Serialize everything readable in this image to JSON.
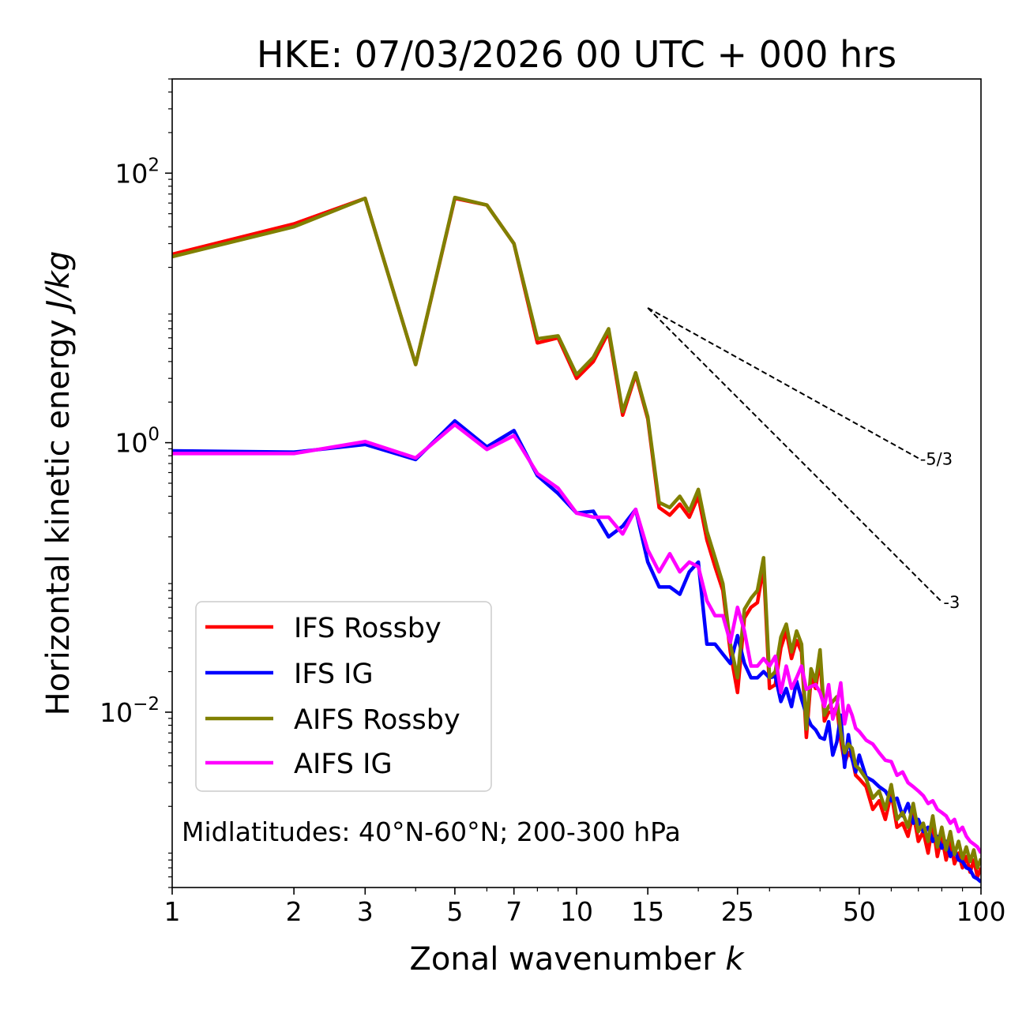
{
  "chart_data": {
    "type": "line",
    "title": "HKE: 07/03/2026 00 UTC + 000 hrs",
    "xlabel": "Zonal wavenumber",
    "xlabel_var": "k",
    "ylabel": "Horizontal kinetic energy",
    "ylabel_units": "J/kg",
    "xscale": "log",
    "yscale": "log",
    "xlim": [
      1,
      100
    ],
    "ylim": [
      0.0005,
      500
    ],
    "xticks": [
      1,
      2,
      3,
      5,
      7,
      10,
      15,
      25,
      50,
      100
    ],
    "xtick_labels": [
      "1",
      "2",
      "3",
      "5",
      "7",
      "10",
      "15",
      "25",
      "50",
      "100"
    ],
    "yticks": [
      {
        "value": 0.01,
        "base": "10",
        "exp": "−2"
      },
      {
        "value": 1,
        "base": "10",
        "exp": "0"
      },
      {
        "value": 100,
        "base": "10",
        "exp": "2"
      }
    ],
    "annotation": "Midlatitudes: 40°N-60°N; 200-300 hPa",
    "legend_position": "lower-left",
    "reference_slopes": [
      {
        "label": "-5/3",
        "slope": -1.6667,
        "x_start": 15,
        "x_end": 70,
        "y_start": 10
      },
      {
        "label": "-3",
        "slope": -3,
        "x_start": 15,
        "x_end": 80,
        "y_start": 10
      }
    ],
    "series": [
      {
        "name": "IFS Rossby",
        "color": "#ff0000",
        "x": [
          1,
          2,
          3,
          4,
          5,
          6,
          7,
          8,
          9,
          10,
          11,
          12,
          13,
          14,
          15,
          16,
          17,
          18,
          19,
          20,
          21,
          22,
          23,
          24,
          25,
          26,
          27,
          28,
          29,
          30,
          31,
          32,
          33,
          34,
          35,
          36,
          37,
          38,
          39,
          40,
          41,
          42,
          43,
          44,
          45,
          46,
          47,
          48,
          49,
          50,
          52,
          54,
          56,
          58,
          60,
          62,
          64,
          66,
          68,
          70,
          72,
          74,
          76,
          78,
          80,
          82,
          84,
          86,
          88,
          90,
          92,
          94,
          96,
          98,
          100
        ],
        "y": [
          25,
          42,
          65,
          3.8,
          65,
          58,
          30,
          5.5,
          6,
          3,
          4,
          6.6,
          1.6,
          3.2,
          1.5,
          0.33,
          0.29,
          0.35,
          0.28,
          0.4,
          0.19,
          0.12,
          0.08,
          0.028,
          0.014,
          0.05,
          0.06,
          0.065,
          0.12,
          0.015,
          0.016,
          0.03,
          0.04,
          0.025,
          0.034,
          0.028,
          0.0065,
          0.018,
          0.015,
          0.025,
          0.0086,
          0.01,
          0.01,
          0.011,
          0.0062,
          0.0042,
          0.005,
          0.0046,
          0.0034,
          0.0032,
          0.0028,
          0.0019,
          0.0022,
          0.0016,
          0.0025,
          0.0014,
          0.0015,
          0.0012,
          0.0018,
          0.0011,
          0.0013,
          0.0009,
          0.0015,
          0.00085,
          0.0012,
          0.0008,
          0.0011,
          0.00075,
          0.0009,
          0.0007,
          0.00085,
          0.00065,
          0.0008,
          0.0006,
          0.0007
        ]
      },
      {
        "name": "IFS IG",
        "color": "#0000ff",
        "x": [
          1,
          2,
          3,
          4,
          5,
          6,
          7,
          8,
          9,
          10,
          11,
          12,
          13,
          14,
          15,
          16,
          17,
          18,
          19,
          20,
          21,
          22,
          23,
          24,
          25,
          26,
          27,
          28,
          29,
          30,
          31,
          32,
          33,
          34,
          35,
          36,
          37,
          38,
          39,
          40,
          41,
          42,
          43,
          44,
          45,
          46,
          47,
          48,
          49,
          50,
          52,
          54,
          56,
          58,
          60,
          62,
          64,
          66,
          68,
          70,
          72,
          74,
          76,
          78,
          80,
          82,
          84,
          86,
          88,
          90,
          92,
          94,
          96,
          98,
          100
        ],
        "y": [
          0.87,
          0.85,
          0.97,
          0.75,
          1.45,
          0.93,
          1.23,
          0.57,
          0.42,
          0.3,
          0.31,
          0.2,
          0.24,
          0.32,
          0.13,
          0.085,
          0.085,
          0.075,
          0.11,
          0.13,
          0.032,
          0.032,
          0.027,
          0.023,
          0.037,
          0.023,
          0.018,
          0.018,
          0.02,
          0.018,
          0.0185,
          0.012,
          0.015,
          0.011,
          0.017,
          0.0125,
          0.0096,
          0.008,
          0.0074,
          0.0065,
          0.0063,
          0.0085,
          0.0048,
          0.006,
          0.0095,
          0.0039,
          0.0068,
          0.0045,
          0.0036,
          0.0048,
          0.0033,
          0.0031,
          0.0028,
          0.0026,
          0.0022,
          0.0023,
          0.0017,
          0.0021,
          0.0015,
          0.0016,
          0.0013,
          0.0014,
          0.0011,
          0.0012,
          0.00098,
          0.0011,
          0.00085,
          0.00095,
          0.0008,
          0.00078,
          0.0007,
          0.00068,
          0.0006,
          0.00058,
          0.00055
        ]
      },
      {
        "name": "AIFS Rossby",
        "color": "#808000",
        "x": [
          1,
          2,
          3,
          4,
          5,
          6,
          7,
          8,
          9,
          10,
          11,
          12,
          13,
          14,
          15,
          16,
          17,
          18,
          19,
          20,
          21,
          22,
          23,
          24,
          25,
          26,
          27,
          28,
          29,
          30,
          31,
          32,
          33,
          34,
          35,
          36,
          37,
          38,
          39,
          40,
          41,
          42,
          43,
          44,
          45,
          46,
          47,
          48,
          49,
          50,
          52,
          54,
          56,
          58,
          60,
          62,
          64,
          66,
          68,
          70,
          72,
          74,
          76,
          78,
          80,
          82,
          84,
          86,
          88,
          90,
          92,
          94,
          96,
          98,
          100
        ],
        "y": [
          24,
          40,
          65,
          3.8,
          66,
          58,
          30,
          5.9,
          6.2,
          3.2,
          4.3,
          7,
          1.7,
          3.3,
          1.55,
          0.36,
          0.33,
          0.4,
          0.31,
          0.45,
          0.22,
          0.14,
          0.09,
          0.032,
          0.018,
          0.058,
          0.07,
          0.08,
          0.14,
          0.018,
          0.02,
          0.036,
          0.045,
          0.028,
          0.04,
          0.032,
          0.0075,
          0.021,
          0.017,
          0.029,
          0.0095,
          0.011,
          0.012,
          0.013,
          0.0071,
          0.005,
          0.0058,
          0.0054,
          0.004,
          0.0038,
          0.0032,
          0.0023,
          0.0026,
          0.0019,
          0.0029,
          0.0016,
          0.0018,
          0.0014,
          0.0021,
          0.0013,
          0.0015,
          0.0011,
          0.0017,
          0.001,
          0.0014,
          0.00095,
          0.0013,
          0.00088,
          0.0011,
          0.00082,
          0.001,
          0.00078,
          0.00095,
          0.0007,
          0.00082
        ]
      },
      {
        "name": "AIFS IG",
        "color": "#ff00ff",
        "x": [
          1,
          2,
          3,
          4,
          5,
          6,
          7,
          8,
          9,
          10,
          11,
          12,
          13,
          14,
          15,
          16,
          17,
          18,
          19,
          20,
          21,
          22,
          23,
          24,
          25,
          26,
          27,
          28,
          29,
          30,
          31,
          32,
          33,
          34,
          35,
          36,
          37,
          38,
          39,
          40,
          41,
          42,
          43,
          44,
          45,
          46,
          47,
          48,
          49,
          50,
          52,
          54,
          56,
          58,
          60,
          62,
          64,
          66,
          68,
          70,
          72,
          74,
          76,
          78,
          80,
          82,
          84,
          86,
          88,
          90,
          92,
          94,
          96,
          98,
          100
        ],
        "y": [
          0.83,
          0.83,
          1.02,
          0.77,
          1.36,
          0.89,
          1.13,
          0.59,
          0.46,
          0.3,
          0.28,
          0.28,
          0.21,
          0.32,
          0.16,
          0.11,
          0.15,
          0.11,
          0.13,
          0.12,
          0.067,
          0.052,
          0.052,
          0.033,
          0.06,
          0.04,
          0.022,
          0.022,
          0.025,
          0.022,
          0.026,
          0.014,
          0.022,
          0.015,
          0.018,
          0.022,
          0.0148,
          0.0155,
          0.016,
          0.014,
          0.011,
          0.016,
          0.0089,
          0.0112,
          0.0165,
          0.0082,
          0.0112,
          0.0095,
          0.0076,
          0.0072,
          0.0062,
          0.0058,
          0.005,
          0.0044,
          0.0043,
          0.0034,
          0.0036,
          0.003,
          0.0028,
          0.0026,
          0.0024,
          0.0021,
          0.0022,
          0.0019,
          0.0018,
          0.0017,
          0.0015,
          0.0016,
          0.0013,
          0.0014,
          0.0012,
          0.0011,
          0.00105,
          0.001,
          0.0009
        ]
      }
    ]
  }
}
